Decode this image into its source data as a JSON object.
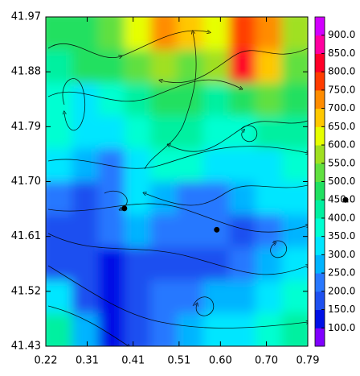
{
  "chart_data": {
    "type": "contour",
    "xlim": [
      0.22,
      0.79
    ],
    "ylim": [
      41.43,
      41.97
    ],
    "xticks": [
      0.22,
      0.31,
      0.41,
      0.51,
      {
        "value": 0.6,
        "label": "0.60"
      },
      {
        "value": 0.7,
        "label": "0.70"
      },
      0.79
    ],
    "yticks": [
      41.43,
      41.52,
      41.61,
      {
        "value": 41.7,
        "label": "41.70"
      },
      41.79,
      41.88,
      41.97
    ],
    "z": [
      [
        450,
        450,
        500,
        600,
        700,
        650,
        600,
        750,
        700,
        550
      ],
      [
        400,
        450,
        450,
        500,
        550,
        500,
        550,
        800,
        650,
        500
      ],
      [
        350,
        300,
        350,
        400,
        450,
        450,
        400,
        450,
        500,
        450
      ],
      [
        350,
        300,
        300,
        350,
        400,
        400,
        350,
        350,
        400,
        400
      ],
      [
        300,
        250,
        200,
        300,
        350,
        350,
        300,
        300,
        300,
        350
      ],
      [
        200,
        150,
        200,
        300,
        250,
        200,
        200,
        250,
        300,
        300
      ],
      [
        150,
        150,
        200,
        250,
        200,
        200,
        200,
        150,
        200,
        250
      ],
      [
        150,
        150,
        100,
        150,
        150,
        150,
        150,
        200,
        250,
        300
      ],
      [
        300,
        150,
        100,
        150,
        200,
        200,
        250,
        250,
        300,
        350
      ],
      [
        400,
        250,
        100,
        150,
        200,
        250,
        300,
        300,
        350,
        400
      ]
    ],
    "clim": [
      50,
      950
    ],
    "colors": [
      "#8000ff",
      "#0010e6",
      "#1e50f0",
      "#2878ff",
      "#00b4ff",
      "#00e6ff",
      "#00ffd2",
      "#00f0a0",
      "#20e060",
      "#60e040",
      "#a0e020",
      "#e6ff00",
      "#ffc800",
      "#ff8c00",
      "#ff3c00",
      "#ff0028",
      "#ff00a0",
      "#d200ff"
    ],
    "cticks": [
      {
        "value": 100,
        "label": "100.0"
      },
      {
        "value": 150,
        "label": "150.0"
      },
      {
        "value": 200,
        "label": "200.0"
      },
      {
        "value": 250,
        "label": "250.0"
      },
      {
        "value": 300,
        "label": "300.0"
      },
      {
        "value": 350,
        "label": "350.0"
      },
      {
        "value": 400,
        "label": "400.0"
      },
      {
        "value": 450,
        "label": "450.0"
      },
      {
        "value": 500,
        "label": "500.0"
      },
      {
        "value": 550,
        "label": "550.0"
      },
      {
        "value": 600,
        "label": "600.0"
      },
      {
        "value": 650,
        "label": "650.0"
      },
      {
        "value": 700,
        "label": "700.0"
      },
      {
        "value": 750,
        "label": "750.0"
      },
      {
        "value": 800,
        "label": "800.0"
      },
      {
        "value": 850,
        "label": "850.0"
      },
      {
        "value": 900,
        "label": "900.0"
      }
    ],
    "points": {
      "x": [
        0.391,
        0.592
      ],
      "y": [
        41.656,
        41.621
      ]
    },
    "colorbar_marker": 450
  }
}
